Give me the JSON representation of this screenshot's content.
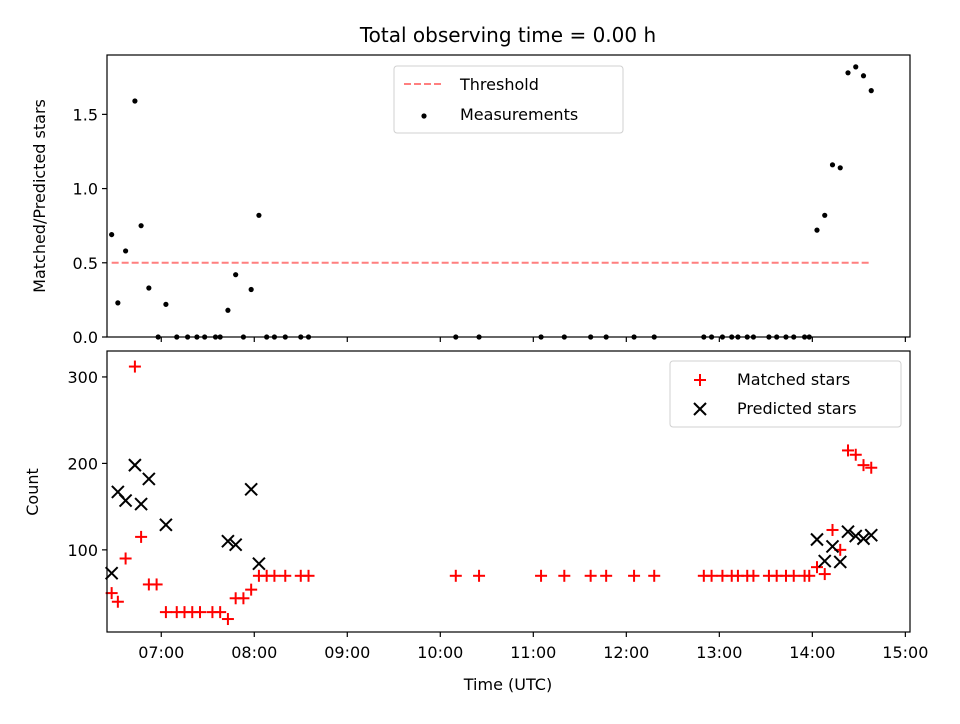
{
  "chart_data": [
    {
      "type": "scatter",
      "title": "Total observing time = 0.00 h",
      "xlabel": "",
      "ylabel": "Matched/Predicted stars",
      "xlim": [
        "06:25",
        "15:03"
      ],
      "ylim": [
        0,
        1.9
      ],
      "yticks": [
        "0.0",
        "0.5",
        "1.0",
        "1.5"
      ],
      "legend": {
        "placement": "top-center",
        "entries": [
          "Threshold",
          "Measurements"
        ]
      },
      "threshold": {
        "name": "Threshold",
        "value": 0.5,
        "x_start": "06:28",
        "x_end": "14:37",
        "color": "#ff7f7f"
      },
      "series": [
        {
          "name": "Measurements",
          "color": "#000000",
          "points": [
            [
              "06:28",
              0.69
            ],
            [
              "06:32",
              0.23
            ],
            [
              "06:37",
              0.58
            ],
            [
              "06:43",
              1.59
            ],
            [
              "06:47",
              0.75
            ],
            [
              "06:52",
              0.33
            ],
            [
              "06:58",
              0.0
            ],
            [
              "07:03",
              0.22
            ],
            [
              "07:10",
              0.0
            ],
            [
              "07:17",
              0.0
            ],
            [
              "07:23",
              0.0
            ],
            [
              "07:28",
              0.0
            ],
            [
              "07:35",
              0.0
            ],
            [
              "07:38",
              0.0
            ],
            [
              "07:43",
              0.18
            ],
            [
              "07:48",
              0.42
            ],
            [
              "07:53",
              0.0
            ],
            [
              "07:58",
              0.32
            ],
            [
              "08:03",
              0.82
            ],
            [
              "08:08",
              0.0
            ],
            [
              "08:13",
              0.0
            ],
            [
              "08:20",
              0.0
            ],
            [
              "08:30",
              0.0
            ],
            [
              "08:35",
              0.0
            ],
            [
              "10:10",
              0.0
            ],
            [
              "10:25",
              0.0
            ],
            [
              "11:05",
              0.0
            ],
            [
              "11:20",
              0.0
            ],
            [
              "11:37",
              0.0
            ],
            [
              "11:47",
              0.0
            ],
            [
              "12:05",
              0.0
            ],
            [
              "12:18",
              0.0
            ],
            [
              "12:50",
              0.0
            ],
            [
              "12:55",
              0.0
            ],
            [
              "13:02",
              0.0
            ],
            [
              "13:08",
              0.0
            ],
            [
              "13:12",
              0.0
            ],
            [
              "13:18",
              0.0
            ],
            [
              "13:22",
              0.0
            ],
            [
              "13:32",
              0.0
            ],
            [
              "13:37",
              0.0
            ],
            [
              "13:43",
              0.0
            ],
            [
              "13:48",
              0.0
            ],
            [
              "13:55",
              0.0
            ],
            [
              "13:58",
              0.0
            ],
            [
              "14:03",
              0.72
            ],
            [
              "14:08",
              0.82
            ],
            [
              "14:13",
              1.16
            ],
            [
              "14:18",
              1.14
            ],
            [
              "14:23",
              1.78
            ],
            [
              "14:28",
              1.82
            ],
            [
              "14:33",
              1.76
            ],
            [
              "14:38",
              1.66
            ]
          ]
        }
      ]
    },
    {
      "type": "scatter",
      "title": "",
      "xlabel": "Time (UTC)",
      "ylabel": "Count",
      "xlim": [
        "06:25",
        "15:03"
      ],
      "ylim": [
        5,
        330
      ],
      "yticks": [
        "100",
        "200",
        "300"
      ],
      "xticks": [
        "07:00",
        "08:00",
        "09:00",
        "10:00",
        "11:00",
        "12:00",
        "13:00",
        "14:00",
        "15:00"
      ],
      "legend": {
        "placement": "top-right",
        "entries": [
          "Matched stars",
          "Predicted stars"
        ]
      },
      "series": [
        {
          "name": "Matched stars",
          "marker": "plus",
          "color": "#ff0000",
          "points": [
            [
              "06:28",
              50
            ],
            [
              "06:32",
              40
            ],
            [
              "06:37",
              90
            ],
            [
              "06:43",
              312
            ],
            [
              "06:47",
              115
            ],
            [
              "06:52",
              60
            ],
            [
              "06:57",
              60
            ],
            [
              "07:03",
              28
            ],
            [
              "07:10",
              28
            ],
            [
              "07:15",
              28
            ],
            [
              "07:20",
              28
            ],
            [
              "07:25",
              28
            ],
            [
              "07:33",
              28
            ],
            [
              "07:38",
              28
            ],
            [
              "07:43",
              20
            ],
            [
              "07:48",
              44
            ],
            [
              "07:53",
              44
            ],
            [
              "07:58",
              54
            ],
            [
              "08:03",
              70
            ],
            [
              "08:08",
              70
            ],
            [
              "08:13",
              70
            ],
            [
              "08:20",
              70
            ],
            [
              "08:30",
              70
            ],
            [
              "08:35",
              70
            ],
            [
              "10:10",
              70
            ],
            [
              "10:25",
              70
            ],
            [
              "11:05",
              70
            ],
            [
              "11:20",
              70
            ],
            [
              "11:37",
              70
            ],
            [
              "11:47",
              70
            ],
            [
              "12:05",
              70
            ],
            [
              "12:18",
              70
            ],
            [
              "12:50",
              70
            ],
            [
              "12:55",
              70
            ],
            [
              "13:02",
              70
            ],
            [
              "13:08",
              70
            ],
            [
              "13:12",
              70
            ],
            [
              "13:18",
              70
            ],
            [
              "13:22",
              70
            ],
            [
              "13:32",
              70
            ],
            [
              "13:37",
              70
            ],
            [
              "13:43",
              70
            ],
            [
              "13:48",
              70
            ],
            [
              "13:55",
              70
            ],
            [
              "13:58",
              70
            ],
            [
              "14:03",
              80
            ],
            [
              "14:08",
              72
            ],
            [
              "14:13",
              123
            ],
            [
              "14:18",
              100
            ],
            [
              "14:23",
              215
            ],
            [
              "14:28",
              210
            ],
            [
              "14:33",
              198
            ],
            [
              "14:38",
              195
            ]
          ]
        },
        {
          "name": "Predicted stars",
          "marker": "x",
          "color": "#000000",
          "points": [
            [
              "06:28",
              73
            ],
            [
              "06:32",
              167
            ],
            [
              "06:37",
              157
            ],
            [
              "06:43",
              198
            ],
            [
              "06:47",
              153
            ],
            [
              "06:52",
              182
            ],
            [
              "07:03",
              129
            ],
            [
              "07:43",
              110
            ],
            [
              "07:48",
              106
            ],
            [
              "07:58",
              170
            ],
            [
              "08:03",
              84
            ],
            [
              "14:03",
              112
            ],
            [
              "14:08",
              87
            ],
            [
              "14:13",
              104
            ],
            [
              "14:18",
              86
            ],
            [
              "14:23",
              121
            ],
            [
              "14:28",
              116
            ],
            [
              "14:33",
              113
            ],
            [
              "14:38",
              117
            ]
          ]
        }
      ]
    }
  ]
}
